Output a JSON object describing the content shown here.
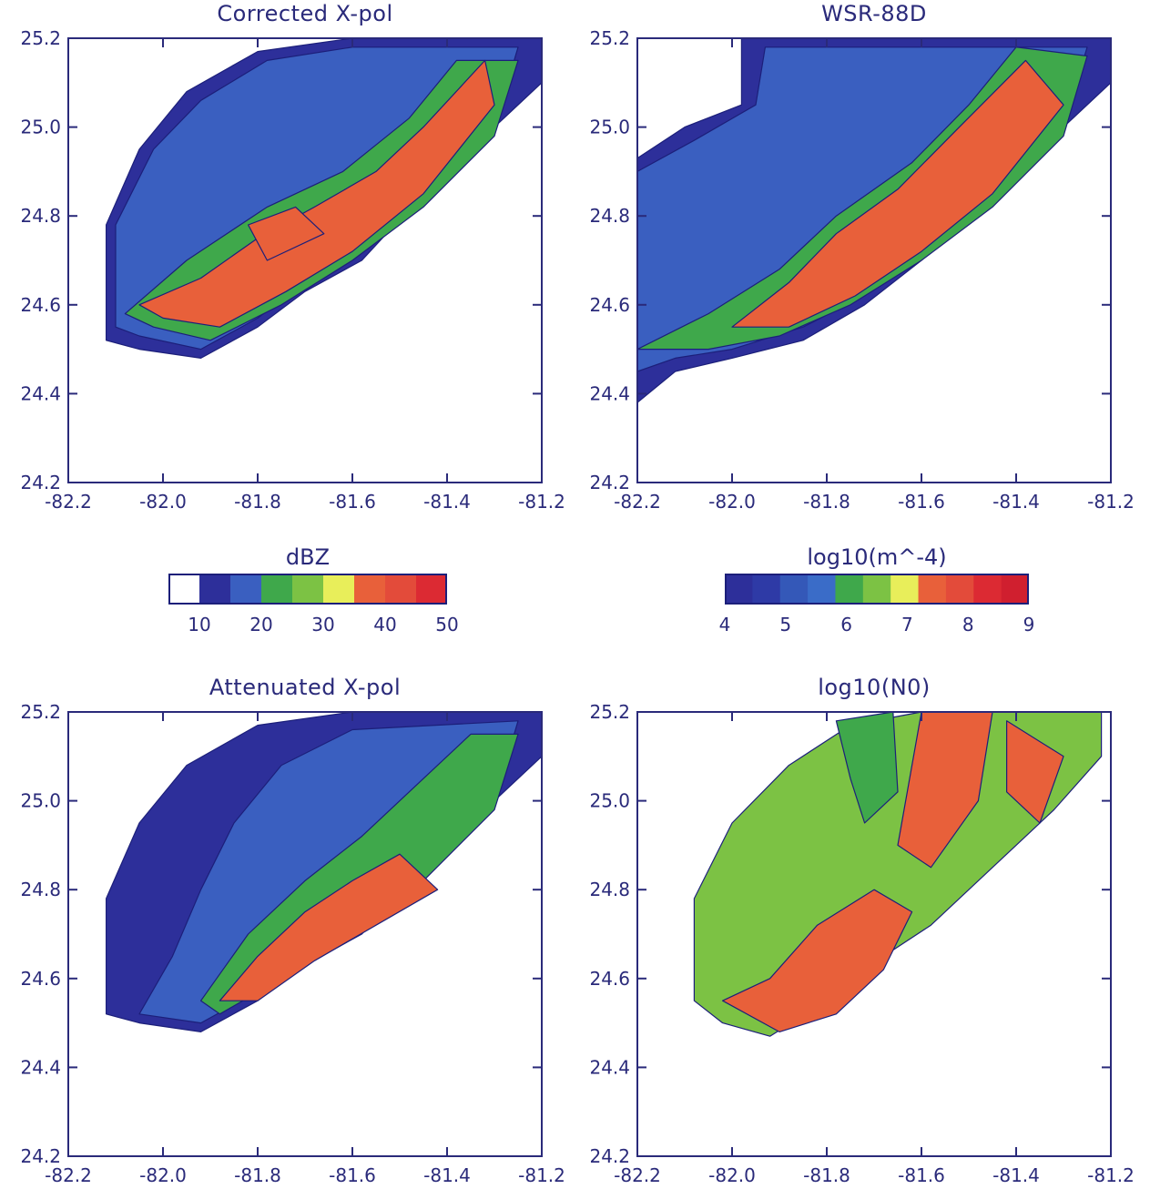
{
  "chart_data": [
    {
      "type": "heatmap",
      "title": "Corrected X-pol",
      "xlim": [
        -82.2,
        -81.2
      ],
      "ylim": [
        24.2,
        25.2
      ],
      "x_ticks": [
        "-82.2",
        "-82.0",
        "-81.8",
        "-81.6",
        "-81.4",
        "-81.2"
      ],
      "y_ticks": [
        "25.2",
        "25.0",
        "24.8",
        "24.6",
        "24.4",
        "24.2"
      ],
      "colorscale": "dBZ",
      "regions": [
        {
          "level": 15,
          "outline": [
            [
              -82.12,
              24.52
            ],
            [
              -82.12,
              24.78
            ],
            [
              -82.05,
              24.95
            ],
            [
              -81.95,
              25.08
            ],
            [
              -81.8,
              25.17
            ],
            [
              -81.6,
              25.2
            ],
            [
              -81.2,
              25.2
            ],
            [
              -81.2,
              25.1
            ],
            [
              -81.3,
              25.0
            ],
            [
              -81.45,
              24.85
            ],
            [
              -81.58,
              24.7
            ],
            [
              -81.7,
              24.63
            ],
            [
              -81.8,
              24.55
            ],
            [
              -81.92,
              24.48
            ],
            [
              -82.05,
              24.5
            ]
          ]
        },
        {
          "level": 25,
          "outline": [
            [
              -82.1,
              24.55
            ],
            [
              -82.1,
              24.78
            ],
            [
              -82.02,
              24.95
            ],
            [
              -81.92,
              25.06
            ],
            [
              -81.78,
              25.15
            ],
            [
              -81.6,
              25.18
            ],
            [
              -81.25,
              25.18
            ],
            [
              -81.3,
              25.0
            ],
            [
              -81.45,
              24.86
            ],
            [
              -81.58,
              24.72
            ],
            [
              -81.7,
              24.65
            ],
            [
              -81.8,
              24.57
            ],
            [
              -81.92,
              24.5
            ],
            [
              -82.05,
              24.53
            ]
          ]
        },
        {
          "level": 32,
          "outline": [
            [
              -82.08,
              24.58
            ],
            [
              -81.95,
              24.7
            ],
            [
              -81.78,
              24.82
            ],
            [
              -81.62,
              24.9
            ],
            [
              -81.48,
              25.02
            ],
            [
              -81.38,
              25.15
            ],
            [
              -81.25,
              25.15
            ],
            [
              -81.3,
              24.98
            ],
            [
              -81.45,
              24.82
            ],
            [
              -81.6,
              24.7
            ],
            [
              -81.75,
              24.6
            ],
            [
              -81.9,
              24.52
            ],
            [
              -82.02,
              24.55
            ]
          ]
        },
        {
          "level": 42,
          "outline": [
            [
              -82.05,
              24.6
            ],
            [
              -81.92,
              24.66
            ],
            [
              -81.8,
              24.75
            ],
            [
              -81.68,
              24.82
            ],
            [
              -81.55,
              24.9
            ],
            [
              -81.45,
              25.0
            ],
            [
              -81.32,
              25.15
            ],
            [
              -81.3,
              25.05
            ],
            [
              -81.45,
              24.85
            ],
            [
              -81.6,
              24.72
            ],
            [
              -81.74,
              24.63
            ],
            [
              -81.88,
              24.55
            ],
            [
              -82.0,
              24.57
            ]
          ]
        },
        {
          "level": 48,
          "outline": [
            [
              -81.82,
              24.78
            ],
            [
              -81.72,
              24.82
            ],
            [
              -81.66,
              24.76
            ],
            [
              -81.78,
              24.7
            ]
          ]
        }
      ]
    },
    {
      "type": "heatmap",
      "title": "WSR-88D",
      "xlim": [
        -82.2,
        -81.2
      ],
      "ylim": [
        24.2,
        25.2
      ],
      "x_ticks": [
        "-82.2",
        "-82.0",
        "-81.8",
        "-81.6",
        "-81.4",
        "-81.2"
      ],
      "y_ticks": [
        "25.2",
        "25.0",
        "24.8",
        "24.6",
        "24.4",
        "24.2"
      ],
      "colorscale": "dBZ",
      "regions": [
        {
          "level": 15,
          "outline": [
            [
              -82.2,
              24.38
            ],
            [
              -82.2,
              24.93
            ],
            [
              -82.1,
              25.0
            ],
            [
              -81.98,
              25.05
            ],
            [
              -81.98,
              25.2
            ],
            [
              -81.2,
              25.2
            ],
            [
              -81.2,
              25.1
            ],
            [
              -81.3,
              25.0
            ],
            [
              -81.45,
              24.85
            ],
            [
              -81.6,
              24.7
            ],
            [
              -81.72,
              24.6
            ],
            [
              -81.85,
              24.52
            ],
            [
              -82.0,
              24.48
            ],
            [
              -82.12,
              24.45
            ]
          ]
        },
        {
          "level": 25,
          "outline": [
            [
              -82.2,
              24.45
            ],
            [
              -82.2,
              24.9
            ],
            [
              -82.08,
              24.97
            ],
            [
              -81.95,
              25.05
            ],
            [
              -81.93,
              25.18
            ],
            [
              -81.25,
              25.18
            ],
            [
              -81.3,
              25.0
            ],
            [
              -81.45,
              24.86
            ],
            [
              -81.6,
              24.72
            ],
            [
              -81.72,
              24.62
            ],
            [
              -81.85,
              24.55
            ],
            [
              -82.0,
              24.5
            ],
            [
              -82.12,
              24.48
            ]
          ]
        },
        {
          "level": 32,
          "outline": [
            [
              -82.2,
              24.5
            ],
            [
              -82.05,
              24.58
            ],
            [
              -81.9,
              24.68
            ],
            [
              -81.78,
              24.8
            ],
            [
              -81.62,
              24.92
            ],
            [
              -81.5,
              25.05
            ],
            [
              -81.4,
              25.18
            ],
            [
              -81.25,
              25.16
            ],
            [
              -81.3,
              24.98
            ],
            [
              -81.45,
              24.82
            ],
            [
              -81.6,
              24.7
            ],
            [
              -81.75,
              24.6
            ],
            [
              -81.9,
              24.53
            ],
            [
              -82.05,
              24.5
            ]
          ]
        },
        {
          "level": 42,
          "outline": [
            [
              -82.0,
              24.55
            ],
            [
              -81.88,
              24.65
            ],
            [
              -81.78,
              24.76
            ],
            [
              -81.65,
              24.86
            ],
            [
              -81.52,
              25.0
            ],
            [
              -81.38,
              25.15
            ],
            [
              -81.3,
              25.05
            ],
            [
              -81.45,
              24.85
            ],
            [
              -81.6,
              24.72
            ],
            [
              -81.74,
              24.62
            ],
            [
              -81.88,
              24.55
            ]
          ]
        }
      ]
    },
    {
      "type": "heatmap",
      "title": "Attenuated X-pol",
      "xlim": [
        -82.2,
        -81.2
      ],
      "ylim": [
        24.2,
        25.2
      ],
      "x_ticks": [
        "-82.2",
        "-82.0",
        "-81.8",
        "-81.6",
        "-81.4",
        "-81.2"
      ],
      "y_ticks": [
        "25.2",
        "25.0",
        "24.8",
        "24.6",
        "24.4",
        "24.2"
      ],
      "colorscale": "dBZ",
      "regions": [
        {
          "level": 15,
          "outline": [
            [
              -82.12,
              24.52
            ],
            [
              -82.12,
              24.78
            ],
            [
              -82.05,
              24.95
            ],
            [
              -81.95,
              25.08
            ],
            [
              -81.8,
              25.17
            ],
            [
              -81.6,
              25.2
            ],
            [
              -81.2,
              25.2
            ],
            [
              -81.2,
              25.1
            ],
            [
              -81.3,
              25.0
            ],
            [
              -81.45,
              24.85
            ],
            [
              -81.58,
              24.7
            ],
            [
              -81.7,
              24.63
            ],
            [
              -81.8,
              24.55
            ],
            [
              -81.92,
              24.48
            ],
            [
              -82.05,
              24.5
            ]
          ]
        },
        {
          "level": 25,
          "outline": [
            [
              -82.05,
              24.52
            ],
            [
              -81.98,
              24.65
            ],
            [
              -81.92,
              24.8
            ],
            [
              -81.85,
              24.95
            ],
            [
              -81.75,
              25.08
            ],
            [
              -81.6,
              25.16
            ],
            [
              -81.25,
              25.18
            ],
            [
              -81.3,
              25.0
            ],
            [
              -81.45,
              24.86
            ],
            [
              -81.58,
              24.72
            ],
            [
              -81.7,
              24.65
            ],
            [
              -81.8,
              24.57
            ],
            [
              -81.92,
              24.5
            ]
          ]
        },
        {
          "level": 32,
          "outline": [
            [
              -81.92,
              24.55
            ],
            [
              -81.82,
              24.7
            ],
            [
              -81.7,
              24.82
            ],
            [
              -81.58,
              24.92
            ],
            [
              -81.45,
              25.05
            ],
            [
              -81.35,
              25.15
            ],
            [
              -81.25,
              25.15
            ],
            [
              -81.3,
              24.98
            ],
            [
              -81.45,
              24.82
            ],
            [
              -81.6,
              24.7
            ],
            [
              -81.75,
              24.6
            ],
            [
              -81.88,
              24.52
            ]
          ]
        },
        {
          "level": 42,
          "outline": [
            [
              -81.88,
              24.55
            ],
            [
              -81.8,
              24.65
            ],
            [
              -81.7,
              24.75
            ],
            [
              -81.6,
              24.82
            ],
            [
              -81.5,
              24.88
            ],
            [
              -81.42,
              24.8
            ],
            [
              -81.55,
              24.72
            ],
            [
              -81.68,
              24.64
            ],
            [
              -81.8,
              24.55
            ]
          ]
        }
      ]
    },
    {
      "type": "heatmap",
      "title": "log10(N0)",
      "xlim": [
        -82.2,
        -81.2
      ],
      "ylim": [
        24.2,
        25.2
      ],
      "x_ticks": [
        "-82.2",
        "-82.0",
        "-81.8",
        "-81.6",
        "-81.4",
        "-81.2"
      ],
      "y_ticks": [
        "25.2",
        "25.0",
        "24.8",
        "24.6",
        "24.4",
        "24.2"
      ],
      "colorscale": "log10(m^-4)",
      "regions": [
        {
          "level": 6.8,
          "outline": [
            [
              -82.08,
              24.55
            ],
            [
              -82.08,
              24.78
            ],
            [
              -82.0,
              24.95
            ],
            [
              -81.88,
              25.08
            ],
            [
              -81.75,
              25.17
            ],
            [
              -81.6,
              25.2
            ],
            [
              -81.22,
              25.2
            ],
            [
              -81.22,
              25.1
            ],
            [
              -81.32,
              24.98
            ],
            [
              -81.4,
              24.9
            ],
            [
              -81.48,
              24.82
            ],
            [
              -81.58,
              24.72
            ],
            [
              -81.68,
              24.65
            ],
            [
              -81.8,
              24.55
            ],
            [
              -81.92,
              24.47
            ],
            [
              -82.02,
              24.5
            ]
          ]
        },
        {
          "level": 7.7,
          "outline": [
            [
              -82.02,
              24.55
            ],
            [
              -81.92,
              24.6
            ],
            [
              -81.82,
              24.72
            ],
            [
              -81.7,
              24.8
            ],
            [
              -81.62,
              24.75
            ],
            [
              -81.68,
              24.62
            ],
            [
              -81.78,
              24.52
            ],
            [
              -81.9,
              24.48
            ]
          ]
        },
        {
          "level": 7.7,
          "outline": [
            [
              -81.6,
              25.2
            ],
            [
              -81.45,
              25.2
            ],
            [
              -81.48,
              25.0
            ],
            [
              -81.58,
              24.85
            ],
            [
              -81.65,
              24.9
            ]
          ]
        },
        {
          "level": 7.7,
          "outline": [
            [
              -81.42,
              25.18
            ],
            [
              -81.3,
              25.1
            ],
            [
              -81.35,
              24.95
            ],
            [
              -81.42,
              25.02
            ]
          ]
        },
        {
          "level": 6.2,
          "outline": [
            [
              -81.78,
              25.18
            ],
            [
              -81.66,
              25.2
            ],
            [
              -81.65,
              25.02
            ],
            [
              -81.72,
              24.95
            ],
            [
              -81.75,
              25.05
            ]
          ]
        }
      ]
    }
  ],
  "colorbars": [
    {
      "title": "dBZ",
      "ticks": [
        "10",
        "20",
        "30",
        "40",
        "50"
      ],
      "bins": [
        "#ffffff",
        "#2d2f9a",
        "#3a5fc0",
        "#3fa84b",
        "#7cc244",
        "#e8ee5a",
        "#e8603a",
        "#e34b3a",
        "#dc2a33"
      ]
    },
    {
      "title": "log10(m^-4)",
      "ticks": [
        "4",
        "5",
        "6",
        "7",
        "8",
        "9"
      ],
      "bins": [
        "#2d2f9a",
        "#2e3aa6",
        "#3458b8",
        "#3a6cc8",
        "#3fa84b",
        "#7cc244",
        "#e8ee5a",
        "#e8603a",
        "#e34b3a",
        "#dc2a33",
        "#d01f2f"
      ]
    }
  ],
  "colors": {
    "axis": "#2a2a7a",
    "dbz_levels": [
      [
        10,
        "#2d2f9a"
      ],
      [
        20,
        "#3a5fc0"
      ],
      [
        30,
        "#3fa84b"
      ],
      [
        35,
        "#e8ee5a"
      ],
      [
        40,
        "#e8603a"
      ],
      [
        50,
        "#dc2a33"
      ]
    ],
    "n0_levels": [
      [
        4,
        "#2d2f9a"
      ],
      [
        6,
        "#3fa84b"
      ],
      [
        6.5,
        "#7cc244"
      ],
      [
        7,
        "#e8ee5a"
      ],
      [
        7.5,
        "#e8603a"
      ],
      [
        9,
        "#dc2a33"
      ]
    ]
  }
}
